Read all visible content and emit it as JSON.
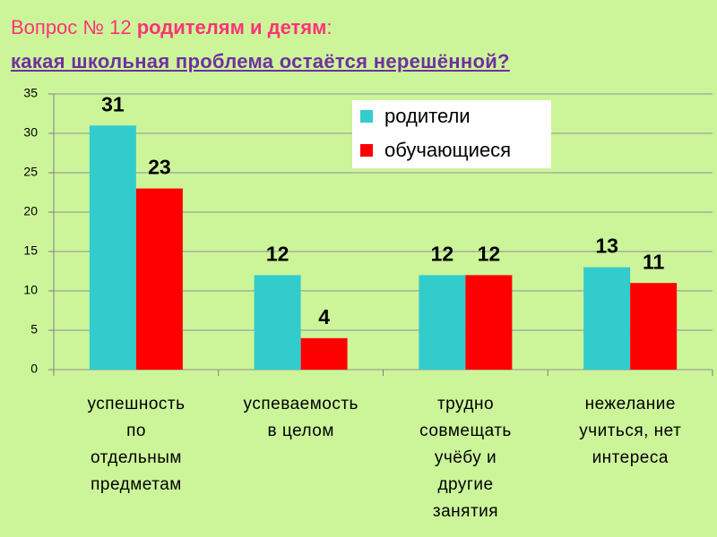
{
  "chart_data": {
    "type": "bar",
    "title": [
      "Вопрос № 12 ",
      "родителям и детям",
      ":"
    ],
    "subtitle": "какая школьная проблема остаётся нерешённой?",
    "categories": [
      "успешность\nпо\nотдельным\nпредметам",
      "успеваемость\nв целом",
      "трудно\nсовмещать\nучёбу и\nдругие\nзанятия",
      "нежелание\nучиться, нет\nинтереса"
    ],
    "series": [
      {
        "name": "родители",
        "color": "#33cccc",
        "values": [
          31,
          12,
          12,
          13
        ]
      },
      {
        "name": "обучающиеся",
        "color": "#ff0000",
        "values": [
          23,
          4,
          12,
          11
        ]
      }
    ],
    "ylim": [
      0,
      35
    ],
    "yticks": [
      0,
      5,
      10,
      15,
      20,
      25,
      30,
      35
    ],
    "grid": true,
    "legend": "upper right"
  }
}
